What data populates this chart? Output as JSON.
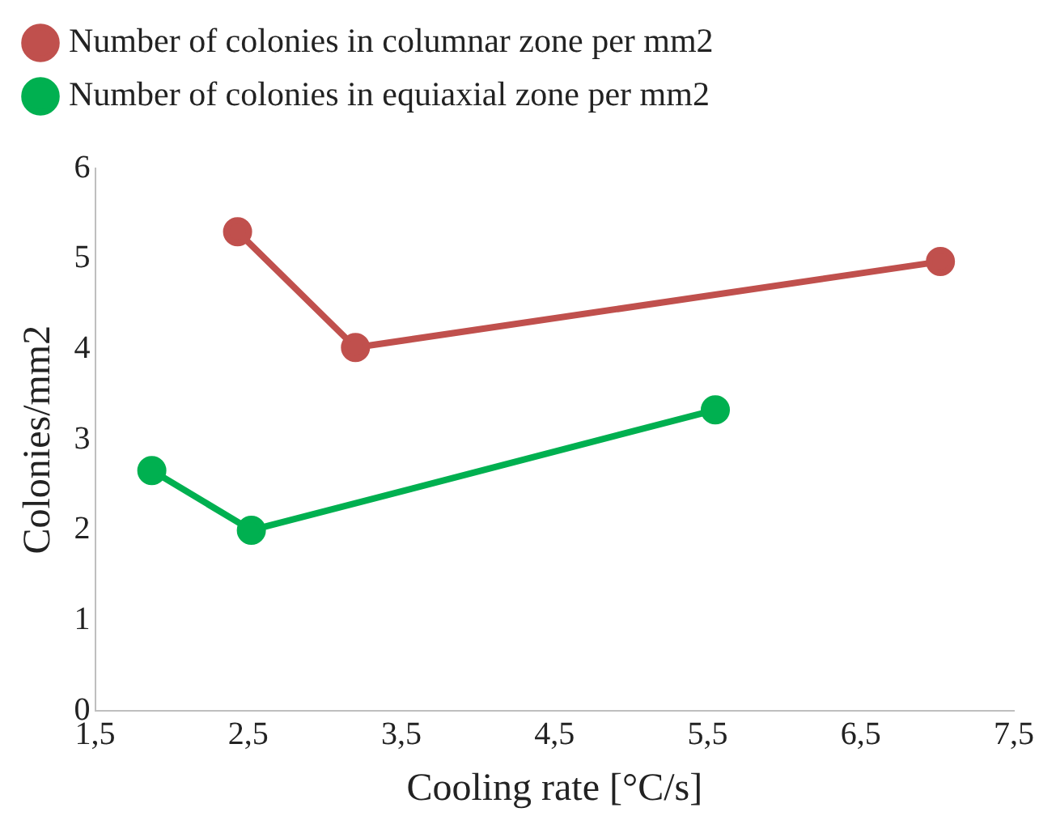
{
  "chart_data": {
    "type": "line",
    "xlabel": "Cooling rate [°C/s]",
    "ylabel": "Colonies/mm2",
    "xlim": [
      1.5,
      7.5
    ],
    "xticks": [
      {
        "value": 1.5,
        "label": "1,5"
      },
      {
        "value": 2.5,
        "label": "2,5"
      },
      {
        "value": 3.5,
        "label": "3,5"
      },
      {
        "value": 4.5,
        "label": "4,5"
      },
      {
        "value": 5.5,
        "label": "5,5"
      },
      {
        "value": 6.5,
        "label": "6,5"
      },
      {
        "value": 7.5,
        "label": "7,5"
      }
    ],
    "ylim": [
      0,
      6
    ],
    "yticks": [
      0,
      1,
      2,
      3,
      4,
      5,
      6
    ],
    "series": [
      {
        "name": "Number of colonies in columnar zone per mm2",
        "color": "#c0504d",
        "x": [
          2.43,
          3.2,
          7.02
        ],
        "values": [
          5.3,
          4.02,
          4.97
        ]
      },
      {
        "name": "Number of colonies in equiaxial zone per mm2",
        "color": "#00b050",
        "x": [
          1.87,
          2.52,
          5.55
        ],
        "values": [
          2.66,
          2.0,
          3.33
        ]
      }
    ],
    "grid": false,
    "legend": "top",
    "marker": "circle",
    "line_style": "solid"
  }
}
